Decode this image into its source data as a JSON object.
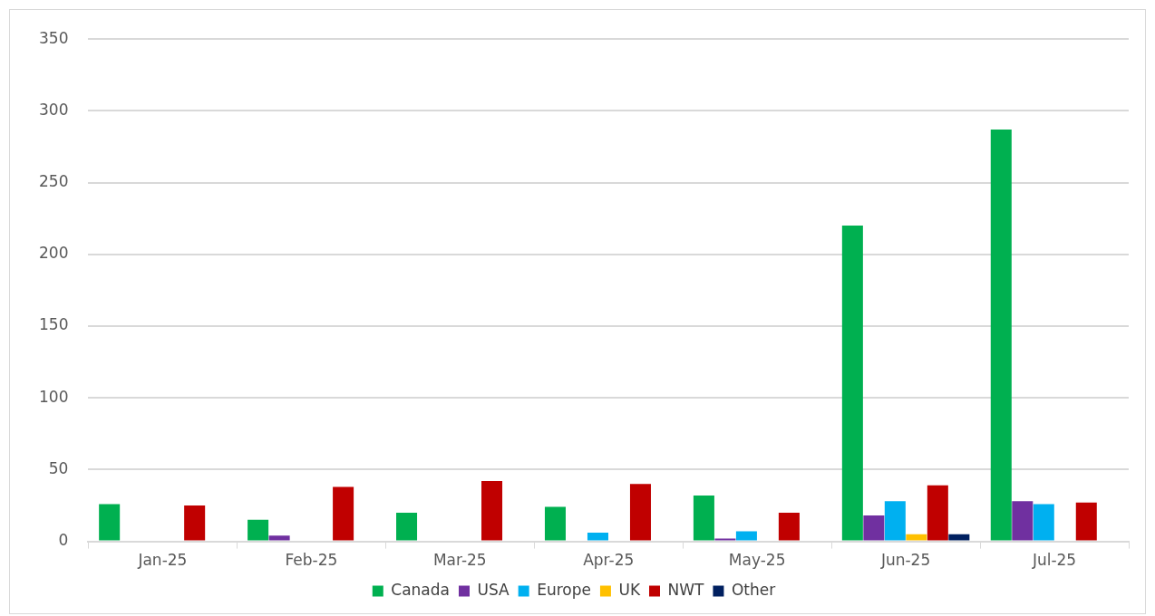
{
  "chart_data": {
    "type": "bar",
    "categories": [
      "Jan-25",
      "Feb-25",
      "Mar-25",
      "Apr-25",
      "May-25",
      "Jun-25",
      "Jul-25"
    ],
    "series": [
      {
        "name": "Canada",
        "color": "#00b050",
        "values": [
          26,
          15,
          20,
          24,
          32,
          220,
          287
        ]
      },
      {
        "name": "USA",
        "color": "#7030a0",
        "values": [
          null,
          4,
          null,
          null,
          2,
          18,
          28
        ]
      },
      {
        "name": "Europe",
        "color": "#00b0f0",
        "values": [
          null,
          null,
          null,
          6,
          7,
          28,
          26
        ]
      },
      {
        "name": "UK",
        "color": "#ffc000",
        "values": [
          null,
          null,
          null,
          null,
          null,
          5,
          null
        ]
      },
      {
        "name": "NWT",
        "color": "#c00000",
        "values": [
          25,
          38,
          42,
          40,
          20,
          39,
          27
        ]
      },
      {
        "name": "Other",
        "color": "#002060",
        "values": [
          null,
          null,
          null,
          null,
          null,
          5,
          null
        ]
      }
    ],
    "ylim": [
      0,
      350
    ],
    "yticks": [
      0,
      50,
      100,
      150,
      200,
      250,
      300,
      350
    ],
    "grid": "y",
    "legend": "bottom"
  }
}
